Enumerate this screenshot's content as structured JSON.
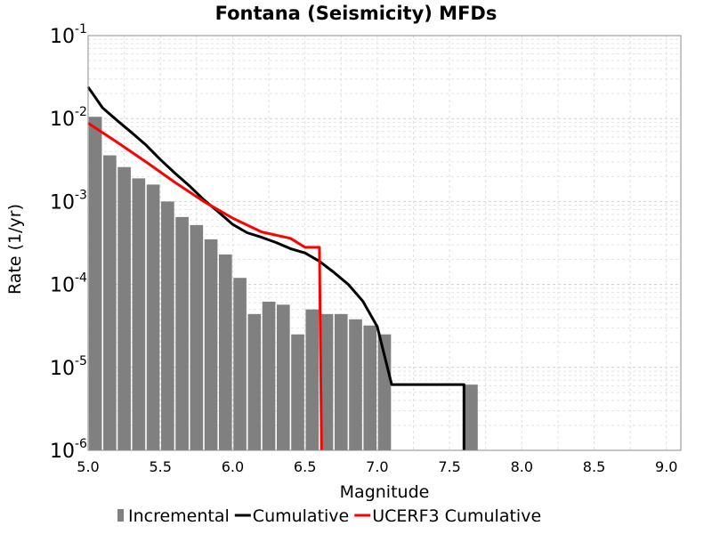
{
  "chart_data": {
    "type": "bar+line",
    "title": "Fontana (Seismicity) MFDs",
    "xlabel": "Magnitude",
    "ylabel": "Rate (1/yr)",
    "xlim": [
      5.0,
      9.1
    ],
    "ylim": [
      1e-06,
      0.1
    ],
    "yscale": "log",
    "grid": true,
    "legend_position": "bottom",
    "x_ticks": [
      "5.0",
      "5.5",
      "6.0",
      "6.5",
      "7.0",
      "7.5",
      "8.0",
      "8.5",
      "9.0"
    ],
    "y_ticks": [
      {
        "base": "10",
        "exp": "-1"
      },
      {
        "base": "10",
        "exp": "-2"
      },
      {
        "base": "10",
        "exp": "-3"
      },
      {
        "base": "10",
        "exp": "-4"
      },
      {
        "base": "10",
        "exp": "-5"
      },
      {
        "base": "10",
        "exp": "-6"
      }
    ],
    "series": [
      {
        "name": "Incremental",
        "kind": "bar",
        "color": "#808080",
        "bar_width": 0.1,
        "x": [
          5.05,
          5.15,
          5.25,
          5.35,
          5.45,
          5.55,
          5.65,
          5.75,
          5.85,
          5.95,
          6.05,
          6.15,
          6.25,
          6.35,
          6.45,
          6.55,
          6.65,
          6.75,
          6.85,
          6.95,
          7.05,
          7.65
        ],
        "y": [
          0.0105,
          0.0036,
          0.0026,
          0.0019,
          0.0016,
          0.001,
          0.00065,
          0.00052,
          0.00035,
          0.00023,
          0.00012,
          4.4e-05,
          6.2e-05,
          5.7e-05,
          2.5e-05,
          5e-05,
          4.4e-05,
          4.4e-05,
          3.8e-05,
          3.2e-05,
          2.5e-05,
          6.2e-06
        ]
      },
      {
        "name": "Cumulative",
        "kind": "line",
        "color": "#000000",
        "x": [
          5.0,
          5.1,
          5.2,
          5.3,
          5.4,
          5.5,
          5.6,
          5.7,
          5.8,
          5.9,
          6.0,
          6.1,
          6.2,
          6.3,
          6.4,
          6.5,
          6.6,
          6.7,
          6.8,
          6.9,
          7.0,
          7.1,
          7.2,
          7.3,
          7.4,
          7.5,
          7.6,
          7.6
        ],
        "y": [
          0.024,
          0.0135,
          0.0095,
          0.0068,
          0.0048,
          0.0032,
          0.0022,
          0.00155,
          0.00105,
          0.00075,
          0.00053,
          0.00042,
          0.00037,
          0.00032,
          0.00027,
          0.00024,
          0.00019,
          0.00014,
          0.0001,
          6.3e-05,
          3.1e-05,
          6.2e-06,
          6.2e-06,
          6.2e-06,
          6.2e-06,
          6.2e-06,
          6.2e-06,
          1e-06
        ]
      },
      {
        "name": "UCERF3 Cumulative",
        "kind": "line",
        "color": "#ff0000",
        "x": [
          5.0,
          5.2,
          5.4,
          5.6,
          5.8,
          6.0,
          6.2,
          6.4,
          6.5,
          6.6,
          6.615
        ],
        "y": [
          0.0088,
          0.0052,
          0.003,
          0.0017,
          0.001,
          0.00063,
          0.00043,
          0.00036,
          0.00028,
          0.00028,
          1e-06
        ]
      }
    ]
  }
}
